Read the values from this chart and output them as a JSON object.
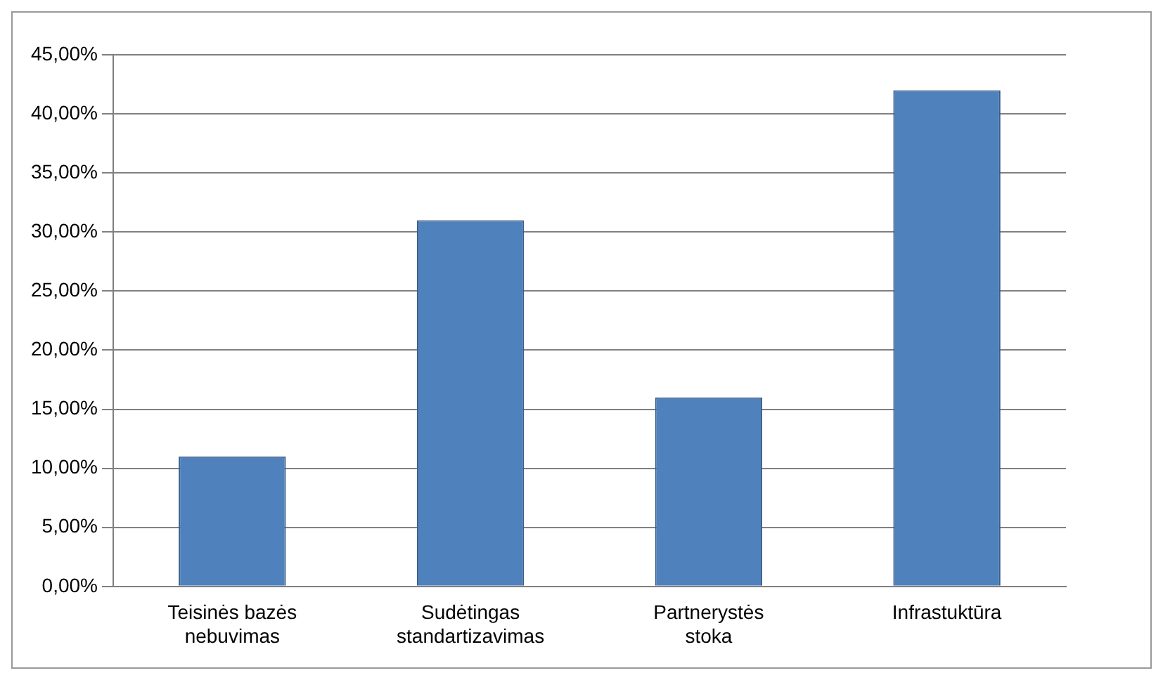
{
  "chart_data": {
    "type": "bar",
    "categories": [
      "Teisinės bazės nebuvimas",
      "Sudėtingas standartizavimas",
      "Partnerystės stoka",
      "Infrastuktūra"
    ],
    "values": [
      11,
      31,
      16,
      42
    ],
    "color": "#4f81bd",
    "ylim": [
      0,
      45
    ],
    "yticks": [
      {
        "value": 0,
        "label": "0,00%"
      },
      {
        "value": 5,
        "label": "5,00%"
      },
      {
        "value": 10,
        "label": "10,00%"
      },
      {
        "value": 15,
        "label": "15,00%"
      },
      {
        "value": 20,
        "label": "20,00%"
      },
      {
        "value": 25,
        "label": "25,00%"
      },
      {
        "value": 30,
        "label": "30,00%"
      },
      {
        "value": 35,
        "label": "35,00%"
      },
      {
        "value": 40,
        "label": "40,00%"
      },
      {
        "value": 45,
        "label": "45,00%"
      }
    ],
    "grid": "y"
  }
}
